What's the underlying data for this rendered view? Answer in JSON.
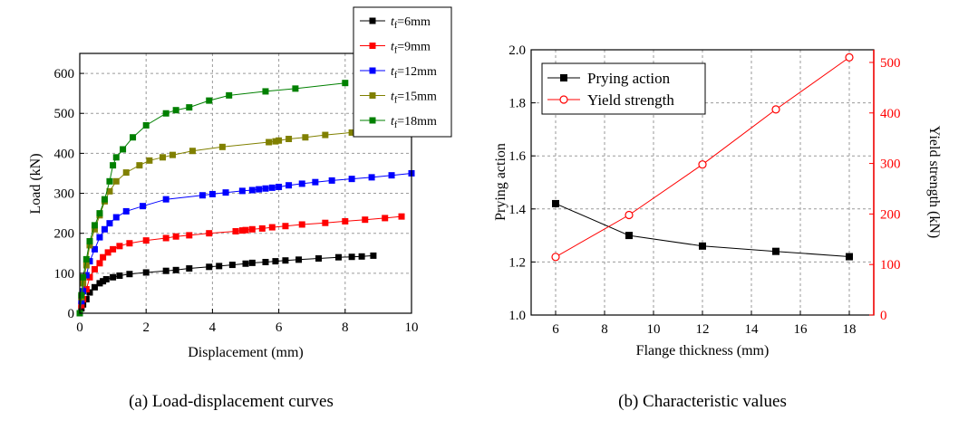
{
  "chart_data": [
    {
      "type": "line",
      "caption": "(a) Load-displacement curves",
      "xlabel": "Displacement (mm)",
      "ylabel": "Load (kN)",
      "xlim": [
        0,
        10
      ],
      "ylim": [
        0,
        650
      ],
      "xticks": [
        0,
        2,
        4,
        6,
        8,
        10
      ],
      "yticks": [
        0,
        100,
        200,
        300,
        400,
        500,
        600
      ],
      "grid": true,
      "legend_position": "top-right",
      "series": [
        {
          "name": "tf=6mm",
          "legend_var": "t",
          "legend_sub": "f",
          "legend_rest": "=6mm",
          "color": "#000000",
          "x": [
            0,
            0.05,
            0.1,
            0.2,
            0.3,
            0.45,
            0.6,
            0.7,
            0.8,
            1.0,
            1.2,
            1.5,
            2.0,
            2.6,
            2.9,
            3.3,
            3.9,
            4.2,
            4.6,
            5.0,
            5.2,
            5.6,
            5.9,
            6.2,
            6.6,
            7.2,
            7.8,
            8.2,
            8.5,
            8.85
          ],
          "y": [
            0,
            12,
            22,
            35,
            52,
            65,
            75,
            80,
            85,
            90,
            94,
            98,
            102,
            106,
            108,
            112,
            116,
            118,
            121,
            124,
            126,
            128,
            130,
            132,
            134,
            137,
            140,
            141,
            142,
            144
          ]
        },
        {
          "name": "tf=9mm",
          "legend_var": "t",
          "legend_sub": "f",
          "legend_rest": "=9mm",
          "color": "#ff0000",
          "x": [
            0,
            0.05,
            0.1,
            0.2,
            0.3,
            0.45,
            0.6,
            0.7,
            0.85,
            1.0,
            1.2,
            1.5,
            2.0,
            2.6,
            2.9,
            3.3,
            3.9,
            4.7,
            4.9,
            5.0,
            5.2,
            5.5,
            5.8,
            6.2,
            6.7,
            7.4,
            8.0,
            8.6,
            9.2,
            9.7
          ],
          "y": [
            0,
            20,
            35,
            60,
            90,
            110,
            125,
            140,
            152,
            160,
            168,
            175,
            182,
            188,
            192,
            195,
            200,
            205,
            207,
            208,
            210,
            212,
            215,
            218,
            222,
            226,
            230,
            234,
            238,
            242
          ]
        },
        {
          "name": "tf=12mm",
          "legend_var": "t",
          "legend_sub": "f",
          "legend_rest": "=12mm",
          "color": "#0000ff",
          "x": [
            0,
            0.05,
            0.1,
            0.2,
            0.3,
            0.45,
            0.6,
            0.75,
            0.9,
            1.1,
            1.4,
            1.9,
            2.6,
            3.7,
            4.0,
            4.4,
            4.9,
            5.2,
            5.4,
            5.6,
            5.8,
            6.0,
            6.3,
            6.7,
            7.1,
            7.6,
            8.2,
            8.8,
            9.4,
            10.0
          ],
          "y": [
            0,
            30,
            55,
            95,
            130,
            160,
            190,
            210,
            225,
            240,
            255,
            268,
            285,
            295,
            298,
            302,
            306,
            308,
            310,
            312,
            314,
            316,
            320,
            324,
            328,
            332,
            336,
            340,
            345,
            350
          ]
        },
        {
          "name": "tf=15mm",
          "legend_var": "t",
          "legend_sub": "f",
          "legend_rest": "=15mm",
          "color": "#808000",
          "x": [
            0,
            0.05,
            0.1,
            0.2,
            0.3,
            0.45,
            0.6,
            0.75,
            0.9,
            1.1,
            1.4,
            1.8,
            2.1,
            2.5,
            2.8,
            3.4,
            4.3,
            5.7,
            5.9,
            6.0,
            6.3,
            6.8,
            7.4,
            8.2,
            8.7,
            9.2
          ],
          "y": [
            0,
            40,
            75,
            120,
            170,
            210,
            245,
            280,
            305,
            330,
            352,
            370,
            382,
            390,
            396,
            406,
            416,
            428,
            430,
            432,
            436,
            440,
            446,
            452,
            458,
            462
          ]
        },
        {
          "name": "tf=18mm",
          "legend_var": "t",
          "legend_sub": "f",
          "legend_rest": "=18mm",
          "color": "#008000",
          "x": [
            0,
            0.05,
            0.1,
            0.2,
            0.3,
            0.45,
            0.6,
            0.75,
            0.9,
            1.0,
            1.1,
            1.3,
            1.6,
            2.0,
            2.6,
            2.9,
            3.3,
            3.9,
            4.5,
            5.6,
            6.5,
            8.0
          ],
          "y": [
            0,
            45,
            90,
            135,
            180,
            220,
            250,
            285,
            330,
            370,
            390,
            410,
            440,
            470,
            500,
            508,
            515,
            532,
            545,
            555,
            562,
            576
          ]
        }
      ]
    },
    {
      "type": "line",
      "caption": "(b) Characteristic values",
      "xlabel": "Flange thickness (mm)",
      "ylabel": "Prying action",
      "y2label": "Yield strength (kN)",
      "xlim": [
        5,
        19
      ],
      "ylim": [
        1.0,
        2.0
      ],
      "y2lim": [
        0,
        525
      ],
      "xticks": [
        6,
        8,
        10,
        12,
        14,
        16,
        18
      ],
      "yticks": [
        "1.0",
        "1.2",
        "1.4",
        "1.6",
        "1.8",
        "2.0"
      ],
      "y2ticks": [
        0,
        100,
        200,
        300,
        400,
        500
      ],
      "grid": true,
      "legend_position": "top-left",
      "series": [
        {
          "name": "Prying action",
          "axis": "left",
          "color": "#000000",
          "marker": "filled-square",
          "x": [
            6,
            9,
            12,
            15,
            18
          ],
          "values": [
            1.42,
            1.3,
            1.26,
            1.24,
            1.22
          ]
        },
        {
          "name": "Yield strength",
          "axis": "right",
          "color": "#ff0000",
          "marker": "open-circle",
          "x": [
            6,
            9,
            12,
            15,
            18
          ],
          "values": [
            115,
            198,
            298,
            407,
            510
          ]
        }
      ]
    }
  ]
}
